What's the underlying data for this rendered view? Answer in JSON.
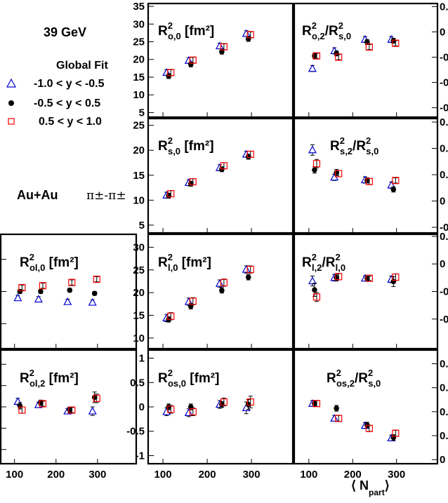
{
  "energy_label": "39 GeV",
  "legend": {
    "title": "Global Fit",
    "entries": [
      {
        "marker": "open-triangle",
        "color": "#0000cc",
        "label": "-1.0 < y < -0.5"
      },
      {
        "marker": "filled-circle",
        "color": "#000000",
        "label": "-0.5 < y < 0.5"
      },
      {
        "marker": "open-square",
        "color": "#ff0000",
        "label": "0.5 < y < 1.0"
      }
    ]
  },
  "system": {
    "label": "Au+Au",
    "pair": "π±-π±"
  },
  "x_axis_label": {
    "main": "N",
    "sub": "part"
  },
  "chart_data": [
    {
      "type": "scatter",
      "panel": "Ro0",
      "title": {
        "main": "R",
        "sup": "2",
        "sub": "o,0",
        "suffix": " [fm²]"
      },
      "x": [
        113,
        163,
        233,
        293
      ],
      "ylim": [
        3.5,
        36
      ],
      "yticks": [
        "5",
        "10",
        "15",
        "20",
        "25",
        "30",
        "35"
      ],
      "ytick_values": [
        5,
        10,
        15,
        20,
        25,
        30,
        35
      ],
      "series": [
        {
          "values": [
            16.3,
            19.7,
            23.8,
            27.3
          ],
          "errors": [
            0.8,
            0.8,
            0.8,
            0.8
          ]
        },
        {
          "values": [
            15.3,
            18.6,
            22.2,
            25.8
          ],
          "errors": [
            0.7,
            0.7,
            0.7,
            0.7
          ]
        },
        {
          "values": [
            16.3,
            19.8,
            23.6,
            27.0
          ],
          "errors": [
            0.8,
            0.8,
            0.8,
            0.8
          ]
        }
      ]
    },
    {
      "type": "scatter",
      "panel": "Ro2Rs0",
      "title": {
        "main": "R",
        "sup": "2",
        "sub": "o,2",
        "suffix": "/R",
        "sup2": "2",
        "sub2": "s,0"
      },
      "x": [
        113,
        163,
        233,
        293
      ],
      "ylim": [
        -0.34,
        0.115
      ],
      "yticks": [
        "0.1",
        "0",
        "-0.1",
        "-0.2",
        "-0.3"
      ],
      "ytick_values": [
        0.1,
        0,
        -0.1,
        -0.2,
        -0.3
      ],
      "series": [
        {
          "values": [
            -0.145,
            -0.075,
            -0.03,
            -0.03
          ],
          "errors": [
            0.012,
            0.012,
            0.012,
            0.012
          ]
        },
        {
          "values": [
            -0.095,
            -0.085,
            -0.04,
            -0.035
          ],
          "errors": [
            0.01,
            0.01,
            0.01,
            0.01
          ]
        },
        {
          "values": [
            -0.095,
            -0.1,
            -0.06,
            -0.045
          ],
          "errors": [
            0.01,
            0.01,
            0.01,
            0.01
          ]
        }
      ]
    },
    {
      "type": "scatter",
      "panel": "Rs0",
      "title": {
        "main": "R",
        "sup": "2",
        "sub": "s,0",
        "suffix": " [fm²]"
      },
      "x": [
        113,
        163,
        233,
        293
      ],
      "ylim": [
        3.3,
        26.5
      ],
      "yticks": [
        "5",
        "10",
        "15",
        "20",
        "25"
      ],
      "ytick_values": [
        5,
        10,
        15,
        20,
        25
      ],
      "series": [
        {
          "values": [
            11.0,
            13.5,
            16.5,
            19.2
          ],
          "errors": [
            0.6,
            0.6,
            0.6,
            0.6
          ]
        },
        {
          "values": [
            10.9,
            13.3,
            16.2,
            18.7
          ],
          "errors": [
            0.5,
            0.5,
            0.5,
            0.5
          ]
        },
        {
          "values": [
            11.3,
            13.7,
            16.9,
            19.2
          ],
          "errors": [
            0.6,
            0.6,
            0.6,
            0.6
          ]
        }
      ]
    },
    {
      "type": "scatter",
      "panel": "Rs2Rs0",
      "title": {
        "main": "R",
        "sup": "2",
        "sub": "s,2",
        "suffix": "/R",
        "sup2": "2",
        "sub2": "s,0"
      },
      "x": [
        113,
        163,
        233,
        293
      ],
      "ylim": [
        -0.062,
        0.158
      ],
      "yticks": [
        "0.15",
        "0.1",
        "0.05",
        "0",
        "-0.05"
      ],
      "ytick_values": [
        0.15,
        0.1,
        0.05,
        0,
        -0.05
      ],
      "series": [
        {
          "values": [
            0.097,
            0.045,
            0.04,
            0.03
          ],
          "errors": [
            0.01,
            0.006,
            0.006,
            0.006
          ]
        },
        {
          "values": [
            0.059,
            0.054,
            0.039,
            0.022
          ],
          "errors": [
            0.006,
            0.006,
            0.005,
            0.005
          ]
        },
        {
          "values": [
            0.071,
            0.052,
            0.037,
            0.039
          ],
          "errors": [
            0.008,
            0.006,
            0.006,
            0.005
          ]
        }
      ]
    },
    {
      "type": "scatter",
      "panel": "Ro_l0",
      "title": {
        "main": "R",
        "sup": "2",
        "sub": "ol,0",
        "suffix": " [fm²]"
      },
      "x": [
        113,
        163,
        233,
        293
      ],
      "ylim": [
        -9,
        9
      ],
      "yticks": [
        "5",
        "0",
        "-5"
      ],
      "ytick_values": [
        5,
        0,
        -5
      ],
      "series": [
        {
          "values": [
            -1.0,
            -1.2,
            -1.6,
            -1.7
          ],
          "errors": [
            0.4,
            0.4,
            0.4,
            0.4
          ]
        },
        {
          "values": [
            0.0,
            0.0,
            0.2,
            -0.3
          ],
          "errors": [
            0.3,
            0.3,
            0.3,
            0.3
          ]
        },
        {
          "values": [
            0.6,
            0.9,
            1.4,
            1.9
          ],
          "errors": [
            0.4,
            0.4,
            0.4,
            0.4
          ]
        }
      ]
    },
    {
      "type": "scatter",
      "panel": "Rl0",
      "title": {
        "main": "R",
        "sup": "2",
        "sub": "l,0",
        "suffix": " [fm²]"
      },
      "x": [
        113,
        163,
        233,
        293
      ],
      "ylim": [
        7.5,
        33
      ],
      "yticks": [
        "10",
        "15",
        "20",
        "25",
        "30"
      ],
      "ytick_values": [
        10,
        15,
        20,
        25,
        30
      ],
      "series": [
        {
          "values": [
            14.4,
            18.0,
            22.0,
            25.1
          ],
          "errors": [
            0.8,
            0.8,
            0.8,
            0.8
          ]
        },
        {
          "values": [
            14.1,
            17.0,
            20.5,
            23.4
          ],
          "errors": [
            0.6,
            0.6,
            0.6,
            0.6
          ]
        },
        {
          "values": [
            14.8,
            18.1,
            22.2,
            25.1
          ],
          "errors": [
            0.8,
            0.8,
            0.8,
            0.8
          ]
        }
      ]
    },
    {
      "type": "scatter",
      "panel": "Rl2Rl0",
      "title": {
        "main": "R",
        "sup": "2",
        "sub": "l,2",
        "suffix": "/R",
        "sup2": "2",
        "sub2": "l,0"
      },
      "x": [
        113,
        163,
        233,
        293
      ],
      "ylim": [
        -0.155,
        0.055
      ],
      "yticks": [
        "0.05",
        "0",
        "-0.05",
        "-0.1"
      ],
      "ytick_values": [
        0.05,
        0,
        -0.05,
        -0.1
      ],
      "series": [
        {
          "values": [
            -0.031,
            -0.025,
            -0.026,
            -0.028
          ],
          "errors": [
            0.009,
            0.006,
            0.004,
            0.006
          ]
        },
        {
          "values": [
            -0.047,
            -0.025,
            -0.026,
            -0.032
          ],
          "errors": [
            0.012,
            0.006,
            0.004,
            0.009
          ]
        },
        {
          "values": [
            -0.06,
            -0.023,
            -0.026,
            -0.024
          ],
          "errors": [
            0.008,
            0.006,
            0.004,
            0.006
          ]
        }
      ]
    },
    {
      "type": "scatter",
      "panel": "Rol2",
      "title": {
        "main": "R",
        "sup": "2",
        "sub": "ol,2",
        "suffix": " [fm²]"
      },
      "x": [
        113,
        163,
        233,
        293
      ],
      "ylim": [
        -2.7,
        2.7
      ],
      "yticks": [
        "2",
        "1",
        "0",
        "-1",
        "-2"
      ],
      "ytick_values": [
        2,
        1,
        0,
        -1,
        -2
      ],
      "series": [
        {
          "values": [
            0.25,
            0.1,
            -0.2,
            -0.2
          ],
          "errors": [
            0.15,
            0.12,
            0.12,
            0.2
          ]
        },
        {
          "values": [
            0.05,
            0.2,
            -0.15,
            0.45
          ],
          "errors": [
            0.15,
            0.12,
            0.12,
            0.25
          ]
        },
        {
          "values": [
            -0.15,
            0.15,
            -0.15,
            0.4
          ],
          "errors": [
            0.15,
            0.12,
            0.12,
            0.2
          ]
        }
      ]
    },
    {
      "type": "scatter",
      "panel": "Ros0",
      "title": {
        "main": "R",
        "sup": "2",
        "sub": "os,0",
        "suffix": " [fm²]"
      },
      "x": [
        113,
        163,
        233,
        293
      ],
      "ylim": [
        -1.18,
        1.18
      ],
      "yticks": [
        "1",
        "0.5",
        "0",
        "-0.5",
        "-1"
      ],
      "ytick_values": [
        1,
        0.5,
        0,
        -0.5,
        -1
      ],
      "series": [
        {
          "values": [
            -0.1,
            -0.12,
            0.05,
            -0.02
          ],
          "errors": [
            0.08,
            0.08,
            0.08,
            0.12
          ]
        },
        {
          "values": [
            0.0,
            0.0,
            0.05,
            0.05
          ],
          "errors": [
            0.06,
            0.06,
            0.06,
            0.1
          ]
        },
        {
          "values": [
            -0.05,
            -0.1,
            0.1,
            0.1
          ],
          "errors": [
            0.08,
            0.08,
            0.08,
            0.12
          ]
        }
      ]
    },
    {
      "type": "scatter",
      "panel": "Ros2Rs0",
      "title": {
        "main": "R",
        "sup": "2",
        "sub": "os,2",
        "suffix": "/R",
        "sup2": "2",
        "sub2": "s,0"
      },
      "x": [
        113,
        163,
        233,
        293
      ],
      "ylim": [
        -0.01,
        0.23
      ],
      "yticks": [
        "0.2",
        "0.15",
        "0.1",
        "0.05",
        "0"
      ],
      "ytick_values": [
        0.2,
        0.15,
        0.1,
        0.05,
        0
      ],
      "series": [
        {
          "values": [
            0.117,
            0.086,
            0.071,
            0.045
          ],
          "errors": [
            0.006,
            0.006,
            0.006,
            0.006
          ]
        },
        {
          "values": [
            0.117,
            0.107,
            0.072,
            0.046
          ],
          "errors": [
            0.006,
            0.006,
            0.006,
            0.006
          ]
        },
        {
          "values": [
            0.117,
            0.086,
            0.065,
            0.055
          ],
          "errors": [
            0.006,
            0.006,
            0.006,
            0.006
          ]
        }
      ]
    }
  ],
  "x_ticks": [
    "100",
    "200",
    "300"
  ],
  "x_tick_values": [
    100,
    200,
    300
  ],
  "xlim": [
    65,
    395
  ]
}
